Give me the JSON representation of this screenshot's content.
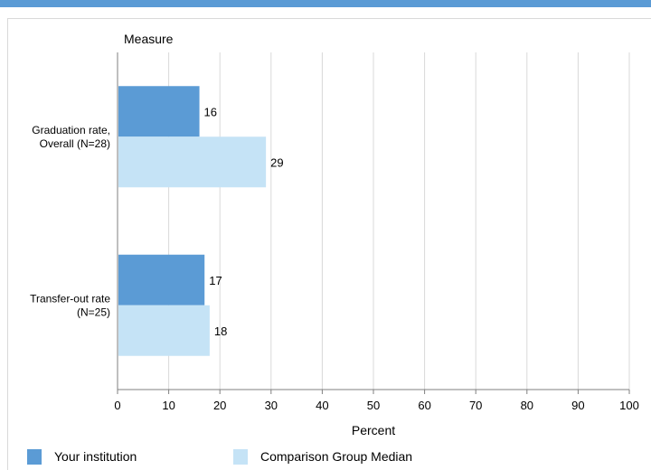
{
  "chart_data": {
    "type": "bar",
    "orientation": "horizontal",
    "title": "",
    "ylabel": "Measure",
    "xlabel": "Percent",
    "xlim": [
      0,
      100
    ],
    "xticks": [
      "0",
      "10",
      "20",
      "30",
      "40",
      "50",
      "60",
      "70",
      "80",
      "90",
      "100"
    ],
    "grid": true,
    "categories": [
      [
        "Graduation rate,",
        "Overall (N=28)"
      ],
      [
        "Transfer-out rate",
        "(N=25)"
      ]
    ],
    "series": [
      {
        "name": "Your institution",
        "values": [
          16,
          17
        ],
        "color": "#5b9bd5"
      },
      {
        "name": "Comparison Group Median",
        "values": [
          29,
          18
        ],
        "color": "#c5e3f6"
      }
    ],
    "legend_position": "bottom"
  }
}
